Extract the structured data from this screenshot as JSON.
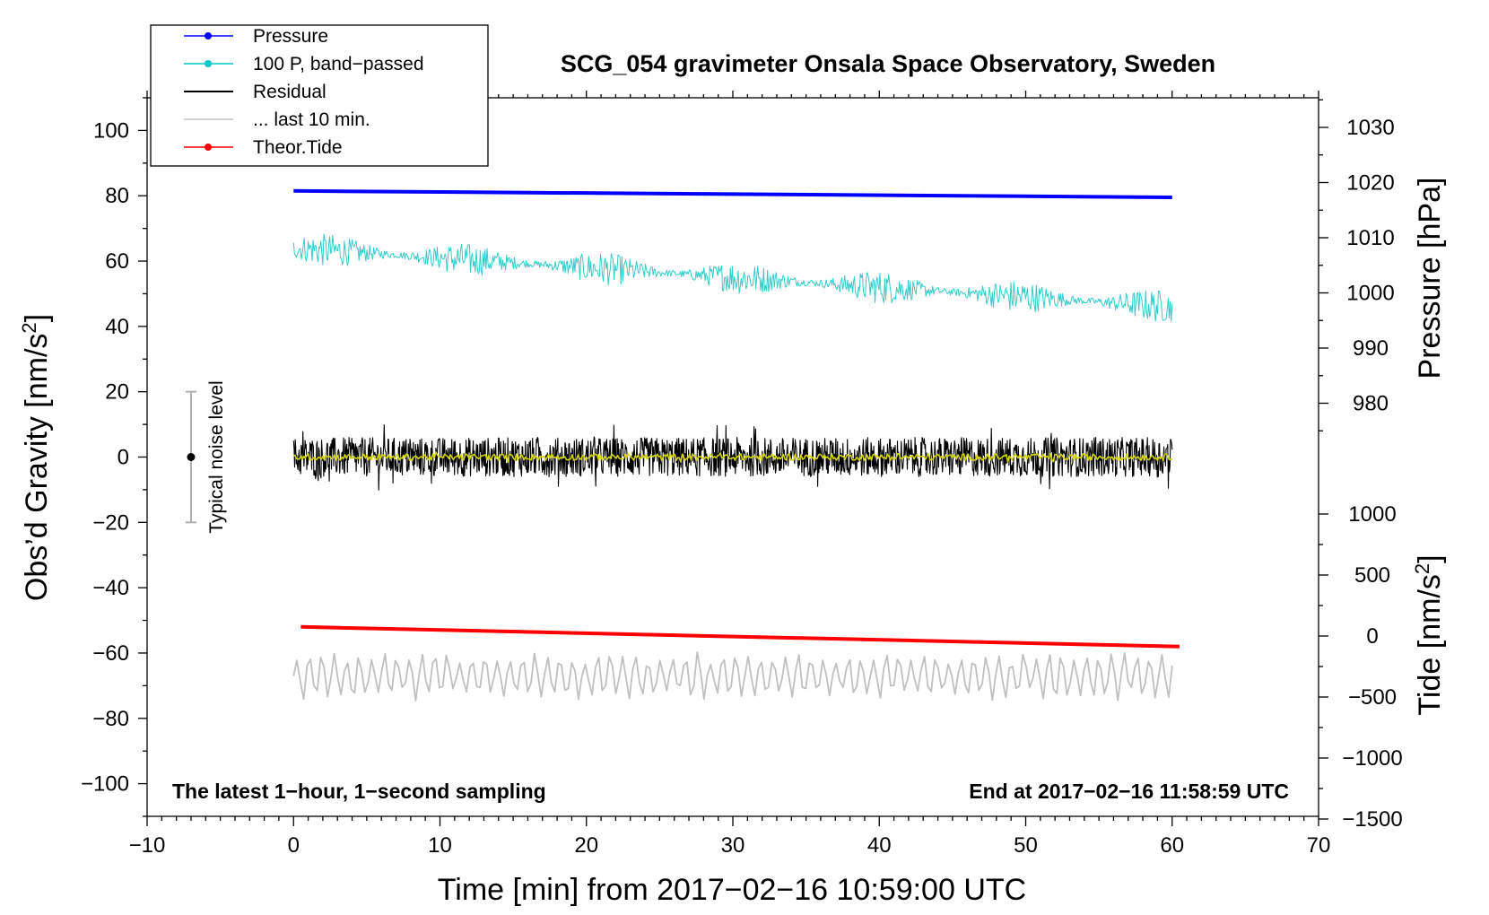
{
  "chart_data": {
    "type": "line",
    "title": "SCG_054 gravimeter Onsala Space Observatory, Sweden",
    "xlabel": "Time [min] from 2017−02−16 10:59:00 UTC",
    "ylabel_left": "Obs’d Gravity [nm/s",
    "ylabel_right_pressure": "Pressure [hPa]",
    "ylabel_right_tide": "Tide [nm/s",
    "unit_superscript": "2",
    "unit_close": "]",
    "xlim": [
      -10,
      70
    ],
    "ylim_left": [
      -110,
      110
    ],
    "x_ticks": [
      "−10",
      "0",
      "10",
      "20",
      "30",
      "40",
      "50",
      "60",
      "70"
    ],
    "y_left_ticks": [
      "100",
      "80",
      "60",
      "40",
      "20",
      "0",
      "−20",
      "−40",
      "−60",
      "−80",
      "−100"
    ],
    "pressure_ticks": [
      "1030",
      "1020",
      "1010",
      "1000",
      "990",
      "980"
    ],
    "tide_ticks": [
      "1000",
      "500",
      "0",
      "−500",
      "−1000",
      "−1500"
    ],
    "legend": [
      {
        "name": "Pressure",
        "color": "#0000ff",
        "marker": true
      },
      {
        "name": "100 P, band−passed",
        "color": "#00c8c8",
        "marker": true
      },
      {
        "name": "Residual",
        "color": "#000000",
        "marker": false
      },
      {
        "name": "... last 10 min.",
        "color": "#c0c0c0",
        "marker": false
      },
      {
        "name": "Theor.Tide",
        "color": "#ff0000",
        "marker": true
      }
    ],
    "series": [
      {
        "name": "Pressure",
        "color": "#0000ff",
        "x": [
          0,
          60
        ],
        "y": [
          81.5,
          79.5
        ]
      },
      {
        "name": "100 P, band−passed",
        "color": "#33cccc",
        "x": [
          0,
          60
        ],
        "y": [
          64,
          46
        ],
        "noise_amplitude": 5
      },
      {
        "name": "Residual",
        "color": "#000000",
        "x": [
          0,
          60
        ],
        "y": [
          0,
          0
        ],
        "noise_amplitude": 6
      },
      {
        "name": "Residual smoothed",
        "color": "#d4d400",
        "x": [
          0,
          60
        ],
        "y": [
          0,
          0
        ],
        "noise_amplitude": 1
      },
      {
        "name": "Theor.Tide",
        "color": "#ff0000",
        "x": [
          0.5,
          60.5
        ],
        "y": [
          -52,
          -58
        ]
      },
      {
        "name": "... last 10 min.",
        "color": "#c0c0c0",
        "x": [
          0,
          60
        ],
        "y": [
          -67,
          -67
        ],
        "noise_amplitude": 7
      }
    ],
    "noise_bar": {
      "label": "Typical noise level",
      "x": -7,
      "center": 0,
      "low": -20,
      "high": 20
    },
    "annotations": {
      "left": "The latest 1−hour, 1−second sampling",
      "right": "End at 2017−02−16 11:58:59 UTC"
    }
  },
  "colors": {
    "pressure": "#0000ff",
    "bandpassed": "#33cccc",
    "residual": "#000000",
    "smoothed": "#d4d400",
    "tide": "#ff0000",
    "last10": "#c0c0c0"
  }
}
